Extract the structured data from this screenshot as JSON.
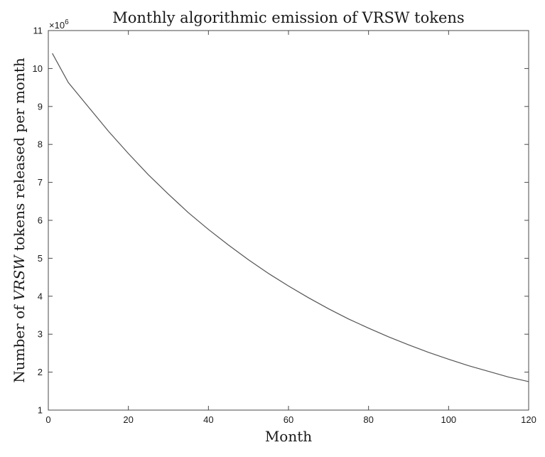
{
  "chart_data": {
    "type": "line",
    "title": "Monthly algorithmic emission of VRSW tokens",
    "xlabel": "Month",
    "ylabel_parts": [
      "Number of ",
      "VRSW",
      " tokens released per month"
    ],
    "ylabel_italic_part": "VRSW",
    "y_exponent_label": "×10",
    "y_exponent_power": "6",
    "xlim": [
      0,
      120
    ],
    "ylim": [
      1,
      11
    ],
    "x_ticks": [
      0,
      20,
      40,
      60,
      80,
      100,
      120
    ],
    "y_ticks": [
      1,
      2,
      3,
      4,
      5,
      6,
      7,
      8,
      9,
      10,
      11
    ],
    "y_scale_multiplier": 1000000,
    "grid": false,
    "series": [
      {
        "x": [
          1,
          5,
          10,
          15,
          20,
          25,
          30,
          35,
          40,
          45,
          50,
          55,
          60,
          65,
          70,
          75,
          80,
          85,
          90,
          95,
          100,
          105,
          110,
          115,
          120
        ],
        "values": [
          10.4,
          9.63,
          8.99,
          8.35,
          7.76,
          7.2,
          6.69,
          6.2,
          5.76,
          5.35,
          4.96,
          4.6,
          4.27,
          3.96,
          3.67,
          3.4,
          3.16,
          2.93,
          2.72,
          2.52,
          2.34,
          2.17,
          2.02,
          1.87,
          1.75
        ]
      }
    ],
    "colors": {
      "line": "#555555",
      "axis": "#4a4a4a",
      "text": "#1a1a1a"
    }
  }
}
